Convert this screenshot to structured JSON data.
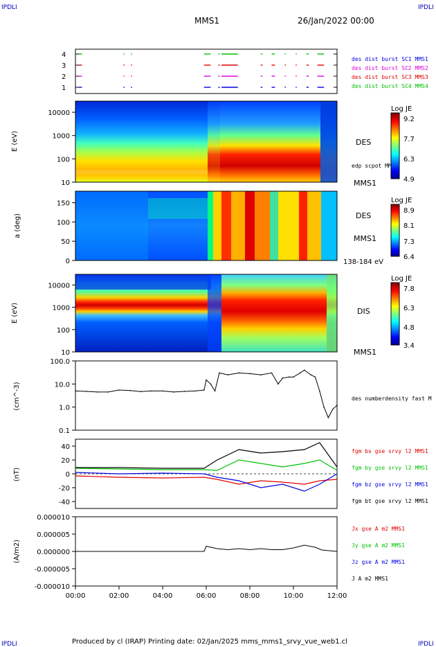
{
  "header": {
    "corner_tl": "IPDLI",
    "corner_tr": "IPDLI",
    "corner_bl": "IPDLI",
    "corner_br": "IPDLI",
    "spacecraft": "MMS1",
    "datetime": "26/Jan/2022 00:00",
    "footer": "Produced by cl (IRAP)   Printing date: 02/Jan/2025   mms_mms1_srvy_vue_web1.cl"
  },
  "colors": {
    "red": "#e00000",
    "green": "#00c000",
    "blue": "#0000e0",
    "magenta": "#e000e0",
    "black": "#000000"
  },
  "chart_data": [
    {
      "type": "scatter",
      "panel": "burst-availability",
      "y_ticks": [
        "1",
        "2",
        "3",
        "4"
      ],
      "legend": [
        {
          "label": "des dist burst SC1 MMS1",
          "color": "#0000e0"
        },
        {
          "label": "des dist burst SC2 MMS2",
          "color": "#e000e0"
        },
        {
          "label": "des dist burst SC3 MMS3",
          "color": "#e00000"
        },
        {
          "label": "des dist burst SC4 MMS4",
          "color": "#00c000"
        }
      ],
      "intervals_hours": [
        [
          0.15,
          0.3
        ],
        [
          2.2,
          2.25
        ],
        [
          2.55,
          2.6
        ],
        [
          5.9,
          6.2
        ],
        [
          6.55,
          6.62
        ],
        [
          6.7,
          7.45
        ],
        [
          8.5,
          8.58
        ],
        [
          9.0,
          9.15
        ],
        [
          9.6,
          9.65
        ],
        [
          10.1,
          10.15
        ],
        [
          10.6,
          10.7
        ],
        [
          11.1,
          11.4
        ]
      ]
    },
    {
      "type": "heatmap",
      "panel": "des-energy",
      "ylabel": "E (eV)",
      "y_ticks": [
        "10",
        "100",
        "1000",
        "10000"
      ],
      "yscale": "log",
      "ylim": [
        10,
        30000
      ],
      "label": "DES",
      "annotation": "edp scpot MMS1",
      "sc_label": "MMS1",
      "colorbar": {
        "title": "Log JE",
        "ticks": [
          "9.2",
          "7.7",
          "6.3",
          "4.9"
        ]
      }
    },
    {
      "type": "heatmap",
      "panel": "des-pitch-angle",
      "ylabel": "a (deg)",
      "y_ticks": [
        "0",
        "50",
        "100",
        "150"
      ],
      "ylim": [
        0,
        180
      ],
      "label": "DES",
      "sc_label": "MMS1",
      "energy_range": "138-184 eV",
      "colorbar": {
        "title": "Log JE",
        "ticks": [
          "8.9",
          "8.1",
          "7.3",
          "6.4"
        ]
      }
    },
    {
      "type": "heatmap",
      "panel": "dis-energy",
      "ylabel": "E (eV)",
      "y_ticks": [
        "10",
        "100",
        "1000",
        "10000"
      ],
      "yscale": "log",
      "ylim": [
        10,
        30000
      ],
      "label": "DIS",
      "sc_label": "MMS1",
      "colorbar": {
        "title": "Log JE",
        "ticks": [
          "7.8",
          "6.3",
          "4.8",
          "3.4"
        ]
      }
    },
    {
      "type": "line",
      "panel": "density",
      "ylabel": "(cm^-3)",
      "y_ticks": [
        "0.1",
        "1.0",
        "10.0",
        "100.0"
      ],
      "yscale": "log",
      "ylim": [
        0.1,
        100
      ],
      "series": [
        {
          "name": "des numberdensity fast M",
          "x": [
            0,
            0.5,
            1,
            1.5,
            2,
            2.5,
            3,
            3.5,
            4,
            4.5,
            5,
            5.5,
            5.9,
            6.0,
            6.2,
            6.4,
            6.6,
            7,
            7.5,
            8,
            8.5,
            9,
            9.3,
            9.5,
            9.8,
            10,
            10.3,
            10.5,
            10.8,
            11,
            11.2,
            11.4,
            11.6,
            11.8,
            12
          ],
          "values": [
            5.0,
            4.8,
            4.5,
            4.5,
            5.5,
            5.2,
            4.7,
            5.0,
            5.0,
            4.5,
            4.8,
            5.0,
            5.5,
            15,
            10,
            5,
            30,
            25,
            30,
            28,
            25,
            30,
            10,
            18,
            20,
            20,
            30,
            40,
            25,
            20,
            5,
            1.0,
            0.35,
            0.8,
            1.2
          ]
        }
      ]
    },
    {
      "type": "line",
      "panel": "magnetic-field",
      "ylabel": "(nT)",
      "y_ticks": [
        "-40",
        "-20",
        "0",
        "20",
        "40"
      ],
      "ylim": [
        -50,
        50
      ],
      "series": [
        {
          "name": "fgm bx gse srvy l2 MMS1",
          "color": "#e00000",
          "x": [
            0,
            2,
            4,
            5.9,
            6.5,
            7.5,
            8.5,
            9.5,
            10.5,
            11.2,
            12
          ],
          "values": [
            -3,
            -5,
            -6,
            -5,
            -8,
            -15,
            -10,
            -12,
            -15,
            -10,
            -8
          ]
        },
        {
          "name": "fgm by gse srvy l2 MMS1",
          "color": "#00c000",
          "x": [
            0,
            2,
            4,
            5.9,
            6.5,
            7.5,
            8.5,
            9.5,
            10.5,
            11.2,
            12
          ],
          "values": [
            8,
            7,
            6,
            6,
            5,
            20,
            15,
            10,
            15,
            20,
            5
          ]
        },
        {
          "name": "fgm bz gse srvy l2 MMS1",
          "color": "#0000e0",
          "x": [
            0,
            2,
            4,
            5.9,
            6.5,
            7.5,
            8.5,
            9.5,
            10.5,
            11.2,
            12
          ],
          "values": [
            2,
            0,
            1,
            0,
            -5,
            -10,
            -20,
            -15,
            -25,
            -15,
            0
          ]
        },
        {
          "name": "fgm bt gse srvy l2 MMS1",
          "color": "#000000",
          "x": [
            0,
            2,
            4,
            5.9,
            6.5,
            7.5,
            8.5,
            9.5,
            10.5,
            11.2,
            12
          ],
          "values": [
            9,
            9,
            8,
            8,
            20,
            35,
            30,
            32,
            35,
            45,
            10
          ]
        }
      ]
    },
    {
      "type": "line",
      "panel": "current-density",
      "ylabel": "(A/m2)",
      "y_ticks": [
        "-0.000010",
        "-0.000005",
        "0.000000",
        "0.000005",
        "0.000010"
      ],
      "ylim": [
        -1e-05,
        1e-05
      ],
      "series": [
        {
          "name": "Jx gse A m2 MMS1",
          "color": "#e00000"
        },
        {
          "name": "Jy gse A m2 MMS1",
          "color": "#00c000"
        },
        {
          "name": "Jz gse A m2 MMS1",
          "color": "#0000e0"
        },
        {
          "name": "J A m2 MMS1",
          "color": "#000000"
        }
      ],
      "x": [
        0,
        5.9,
        6.0,
        6.5,
        7,
        7.5,
        8,
        8.5,
        9,
        9.5,
        10,
        10.5,
        11,
        11.3,
        12
      ],
      "values": [
        0,
        0,
        1.5e-06,
        8e-07,
        5e-07,
        8e-07,
        5e-07,
        8e-07,
        5e-07,
        5e-07,
        1e-06,
        1.8e-06,
        1.2e-06,
        4e-07,
        0
      ]
    }
  ],
  "x_axis": {
    "ticks": [
      "00:00",
      "02:00",
      "04:00",
      "06:00",
      "08:00",
      "10:00",
      "12:00"
    ],
    "range_hours": [
      0,
      12
    ]
  }
}
